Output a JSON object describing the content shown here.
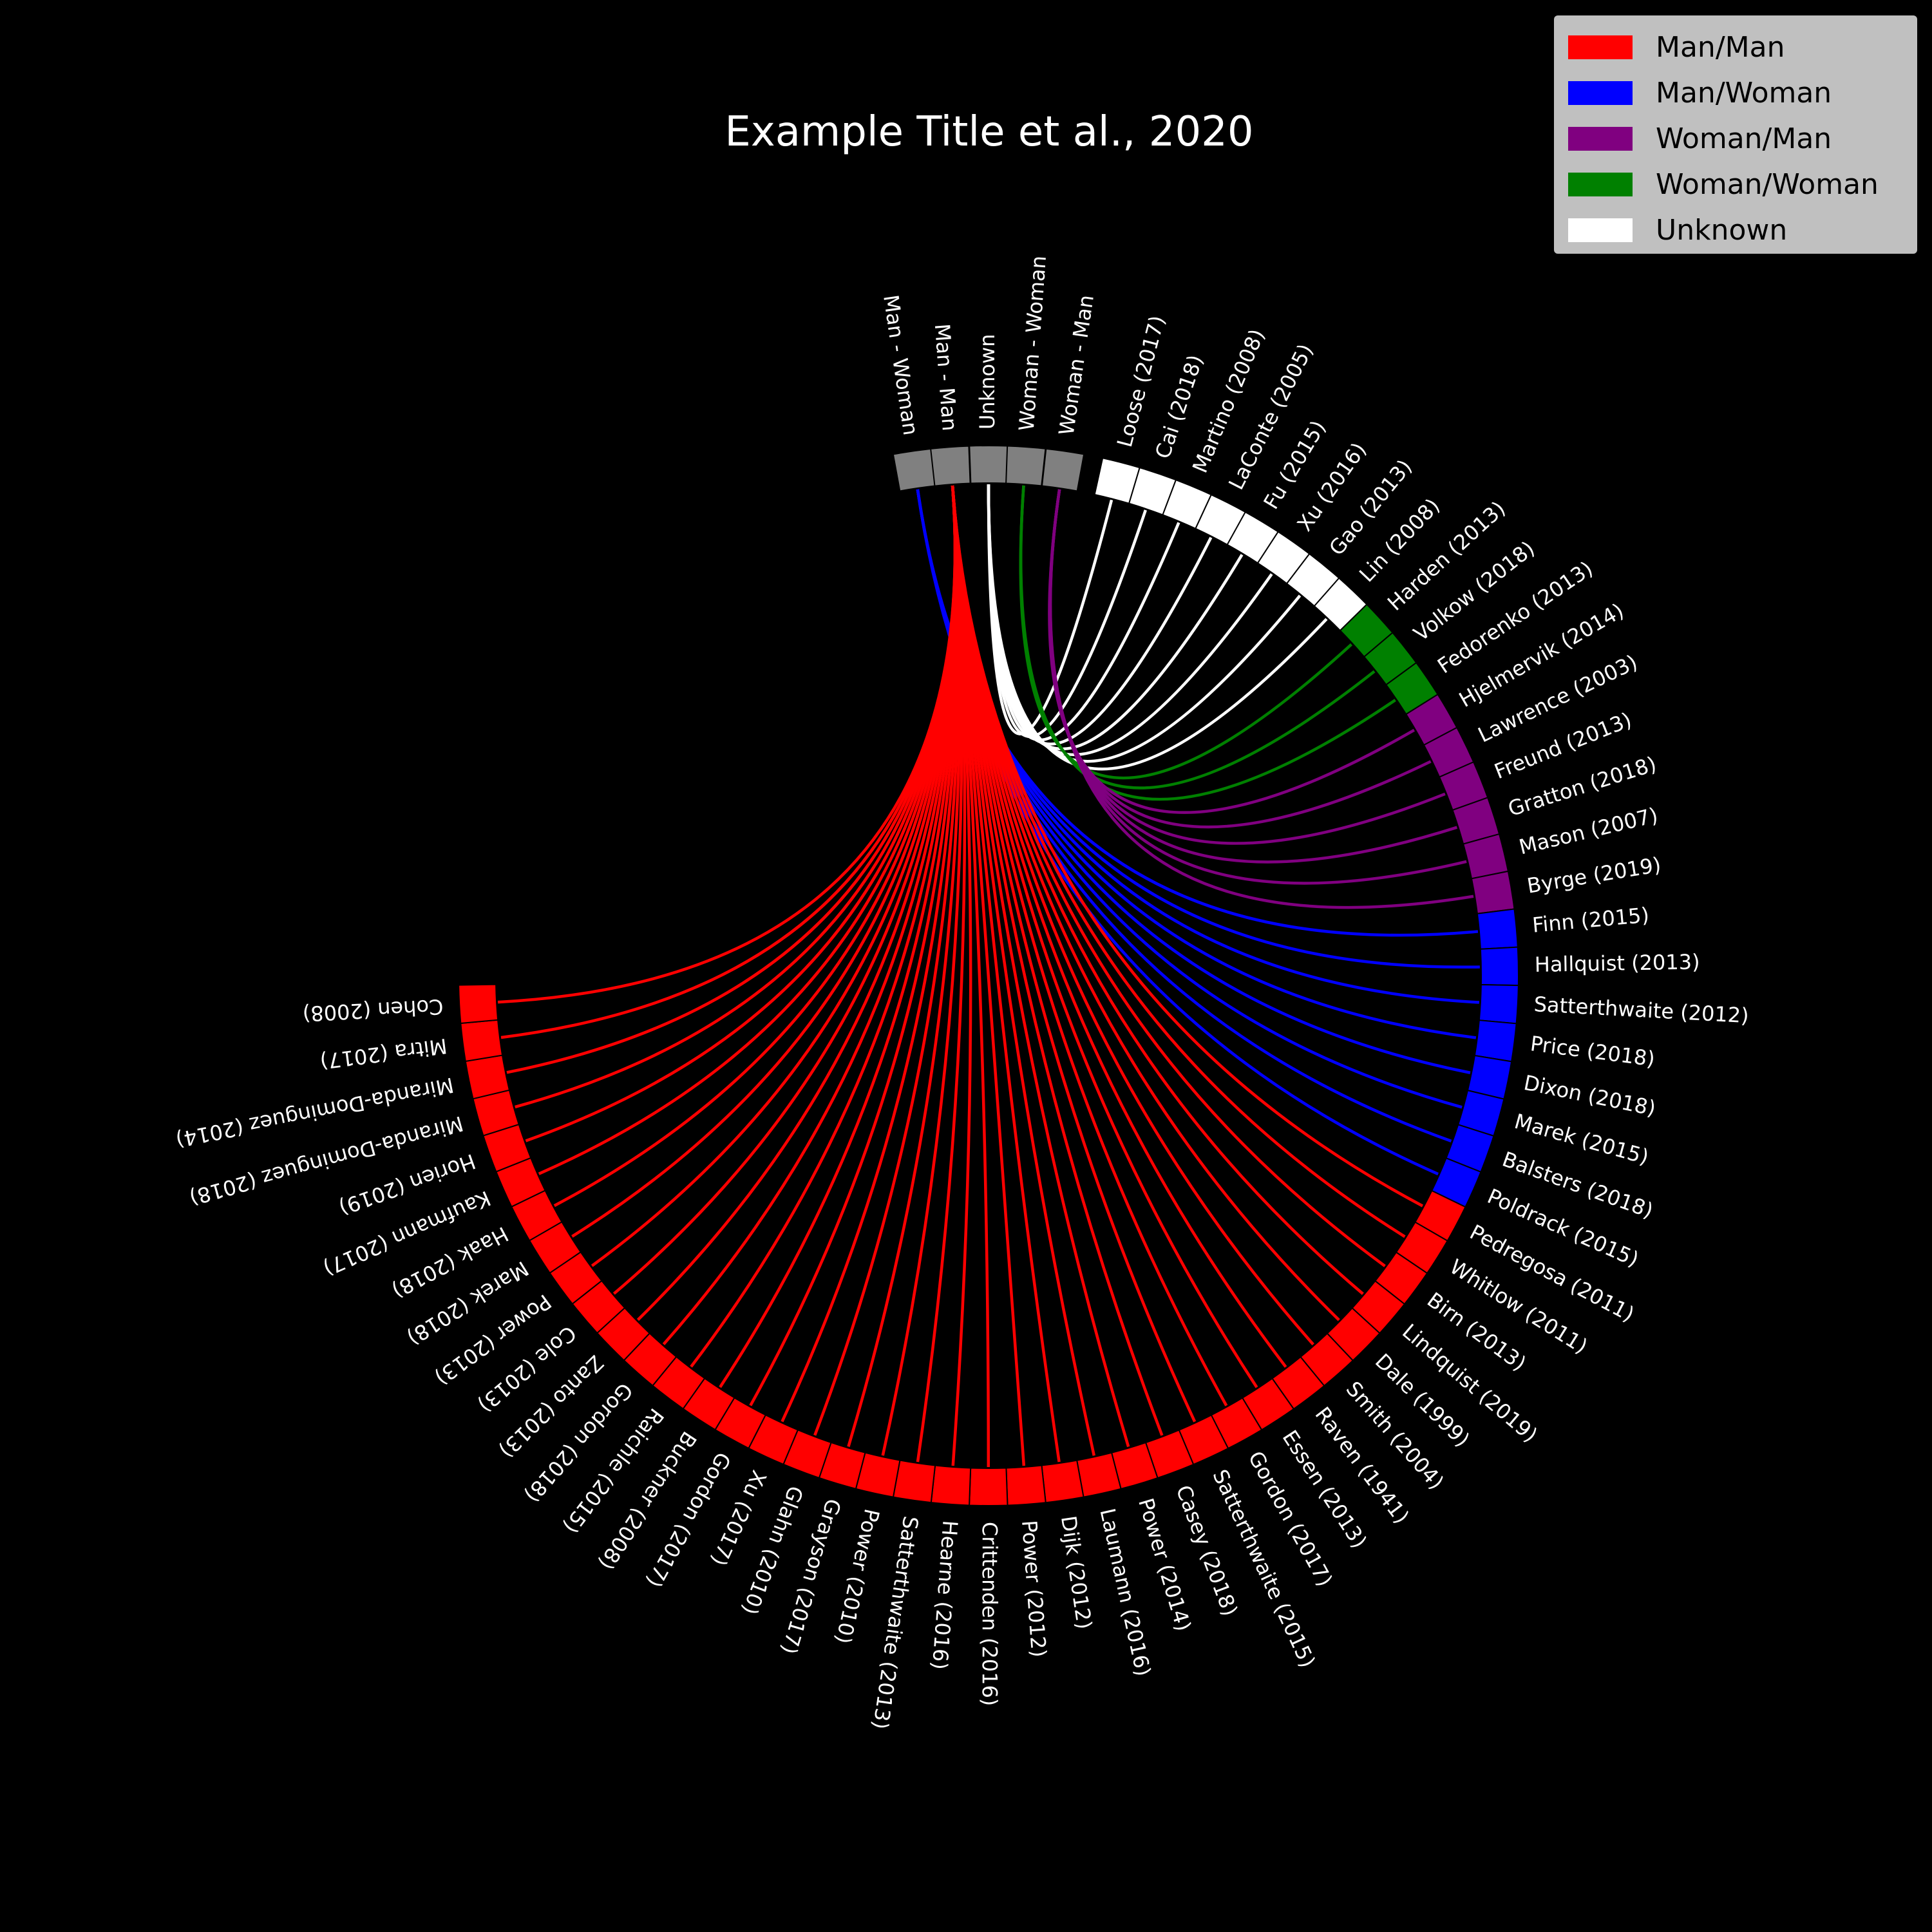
{
  "chart_data": {
    "type": "chord",
    "title": "Example Title et al., 2020",
    "legend": {
      "placement": "top-right",
      "items": [
        {
          "label": "Man/Man",
          "color": "#ff0000"
        },
        {
          "label": "Man/Woman",
          "color": "#0000ff"
        },
        {
          "label": "Woman/Man",
          "color": "#800080"
        },
        {
          "label": "Woman/Woman",
          "color": "#008000"
        },
        {
          "label": "Unknown",
          "color": "#ffffff"
        }
      ]
    },
    "category_nodes": [
      {
        "label": "Man - Woman",
        "color": "#808080"
      },
      {
        "label": "Man - Man",
        "color": "#808080"
      },
      {
        "label": "Unknown",
        "color": "#808080"
      },
      {
        "label": "Woman - Woman",
        "color": "#808080"
      },
      {
        "label": "Woman - Man",
        "color": "#808080"
      }
    ],
    "groups": [
      {
        "category": "Unknown",
        "color": "#ffffff",
        "papers": [
          "Loose (2017)",
          "Cai (2018)",
          "Martino (2008)",
          "LaConte (2005)",
          "Fu (2015)",
          "Xu (2016)",
          "Gao (2013)",
          "Lin (2008)"
        ]
      },
      {
        "category": "Woman - Woman",
        "color": "#008000",
        "papers": [
          "Harden (2013)",
          "Volkow (2018)",
          "Fedorenko (2013)"
        ]
      },
      {
        "category": "Woman - Man",
        "color": "#800080",
        "papers": [
          "Hjelmervik (2014)",
          "Lawrence (2003)",
          "Freund (2013)",
          "Gratton (2018)",
          "Mason (2007)",
          "Byrge (2019)"
        ]
      },
      {
        "category": "Man - Woman",
        "color": "#0000ff",
        "papers": [
          "Finn (2015)",
          "Hallquist (2013)",
          "Satterthwaite (2012)",
          "Price (2018)",
          "Dixon (2018)",
          "Marek (2015)",
          "Balsters (2018)",
          "Poldrack (2015)"
        ]
      },
      {
        "category": "Man - Man",
        "color": "#ff0000",
        "papers": [
          "Pedregosa (2011)",
          "Whitlow (2011)",
          "Birn (2013)",
          "Lindquist (2019)",
          "Dale (1999)",
          "Smith (2004)",
          "Raven (1941)",
          "Essen (2013)",
          "Gordon (2017)",
          "Satterthwaite (2015)",
          "Casey (2018)",
          "Power (2014)",
          "Laumann (2016)",
          "Dijk (2012)",
          "Power (2012)",
          "Crittenden (2016)",
          "Hearne (2016)",
          "Satterthwaite (2013)",
          "Power (2010)",
          "Grayson (2017)",
          "Glahn (2010)",
          "Xu (2017)",
          "Gordon (2017)",
          "Buckner (2008)",
          "Raichle (2015)",
          "Gordon (2018)",
          "Zanto (2013)",
          "Cole (2013)",
          "Power (2013)",
          "Marek (2018)",
          "Haak (2018)",
          "Kaufmann (2017)",
          "Horien (2019)",
          "Miranda-Dominguez (2018)",
          "Miranda-Dominguez (2014)",
          "Mitra (2017)",
          "Cohen (2008)"
        ]
      }
    ]
  }
}
